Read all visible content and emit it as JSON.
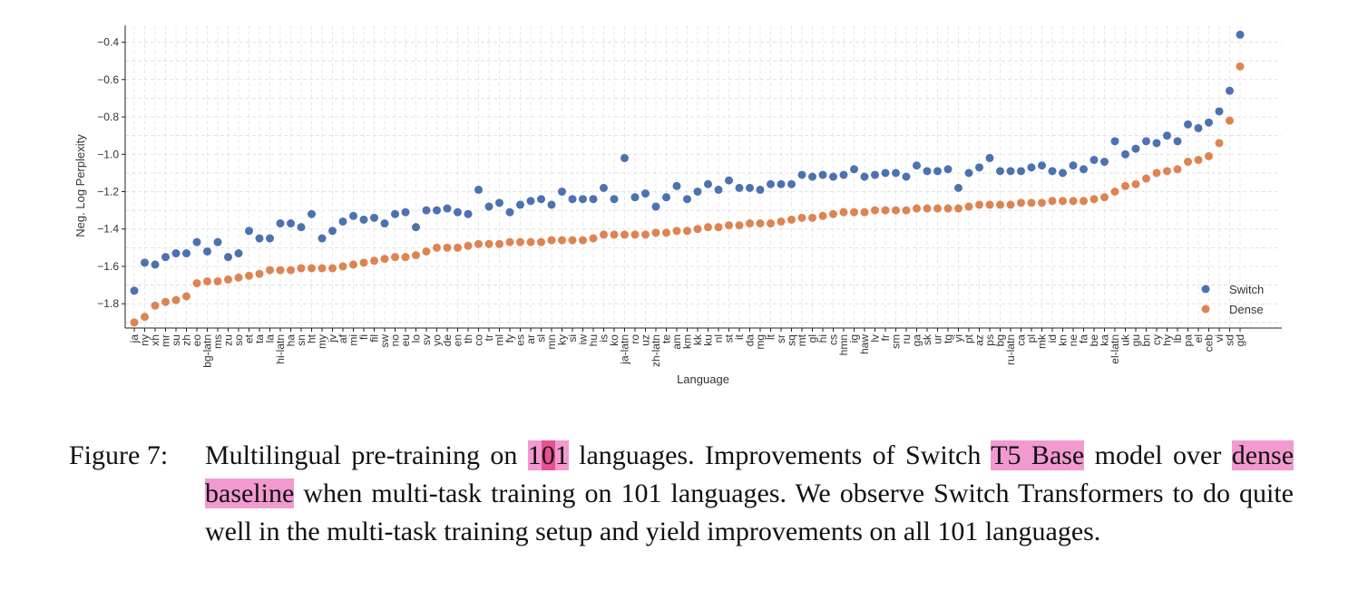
{
  "chart_data": {
    "type": "scatter",
    "xlabel": "Language",
    "ylabel": "Neg. Log Perplexity",
    "ylim": [
      -1.93,
      -0.31
    ],
    "yticks": [
      -1.8,
      -1.6,
      -1.4,
      -1.2,
      -1.0,
      -0.8,
      -0.6,
      -0.4
    ],
    "ytick_labels": [
      "−1.8",
      "−1.6",
      "−1.4",
      "−1.2",
      "−1.0",
      "−0.8",
      "−0.6",
      "−0.4"
    ],
    "grid": true,
    "legend_position": "bottom-right",
    "categories": [
      "ja",
      "ny",
      "xh",
      "mr",
      "su",
      "zh",
      "eo",
      "bg-latn",
      "ms",
      "zu",
      "so",
      "et",
      "ta",
      "la",
      "hi-latn",
      "ha",
      "sn",
      "ht",
      "my",
      "jv",
      "af",
      "mi",
      "fi",
      "fil",
      "sw",
      "no",
      "eu",
      "lo",
      "sv",
      "yo",
      "de",
      "en",
      "th",
      "co",
      "tr",
      "ml",
      "fy",
      "es",
      "ar",
      "sl",
      "mn",
      "ky",
      "si",
      "iw",
      "hu",
      "is",
      "ko",
      "ja-latn",
      "ro",
      "uz",
      "zh-latn",
      "te",
      "am",
      "km",
      "kk",
      "ku",
      "nl",
      "st",
      "it",
      "da",
      "mg",
      "lt",
      "sr",
      "sq",
      "mt",
      "gl",
      "hi",
      "cs",
      "hmn",
      "ig",
      "haw",
      "lv",
      "fr",
      "sm",
      "ru",
      "ga",
      "sk",
      "ur",
      "tg",
      "yi",
      "pt",
      "az",
      "ps",
      "bg",
      "ru-latn",
      "ca",
      "pl",
      "mk",
      "id",
      "kn",
      "ne",
      "fa",
      "be",
      "ka",
      "el-latn",
      "uk",
      "gu",
      "bn",
      "cy",
      "hy",
      "lb",
      "pa",
      "el",
      "ceb",
      "vi",
      "sd",
      "gd"
    ],
    "series": [
      {
        "name": "Switch",
        "color": "#4c72b0",
        "values": [
          -1.73,
          -1.58,
          -1.59,
          -1.55,
          -1.53,
          -1.53,
          -1.47,
          -1.52,
          -1.47,
          -1.55,
          -1.53,
          -1.41,
          -1.45,
          -1.45,
          -1.37,
          -1.37,
          -1.39,
          -1.32,
          -1.45,
          -1.41,
          -1.36,
          -1.33,
          -1.35,
          -1.34,
          -1.37,
          -1.32,
          -1.31,
          -1.39,
          -1.3,
          -1.3,
          -1.29,
          -1.31,
          -1.32,
          -1.19,
          -1.28,
          -1.26,
          -1.31,
          -1.27,
          -1.25,
          -1.24,
          -1.27,
          -1.2,
          -1.24,
          -1.24,
          -1.24,
          -1.18,
          -1.24,
          -1.02,
          -1.23,
          -1.21,
          -1.28,
          -1.23,
          -1.17,
          -1.24,
          -1.2,
          -1.16,
          -1.19,
          -1.14,
          -1.18,
          -1.18,
          -1.19,
          -1.16,
          -1.16,
          -1.16,
          -1.11,
          -1.12,
          -1.11,
          -1.12,
          -1.11,
          -1.08,
          -1.12,
          -1.11,
          -1.1,
          -1.1,
          -1.12,
          -1.06,
          -1.09,
          -1.09,
          -1.08,
          -1.18,
          -1.1,
          -1.07,
          -1.02,
          -1.09,
          -1.09,
          -1.09,
          -1.07,
          -1.06,
          -1.09,
          -1.1,
          -1.06,
          -1.08,
          -1.03,
          -1.04,
          -0.93,
          -1.0,
          -0.97,
          -0.93,
          -0.94,
          -0.9,
          -0.93,
          -0.84,
          -0.86,
          -0.83,
          -0.77,
          -0.66,
          -0.36
        ]
      },
      {
        "name": "Dense",
        "color": "#dd8452",
        "values": [
          -1.9,
          -1.87,
          -1.81,
          -1.79,
          -1.78,
          -1.76,
          -1.69,
          -1.68,
          -1.68,
          -1.67,
          -1.66,
          -1.65,
          -1.64,
          -1.62,
          -1.62,
          -1.62,
          -1.61,
          -1.61,
          -1.61,
          -1.61,
          -1.6,
          -1.59,
          -1.58,
          -1.57,
          -1.56,
          -1.55,
          -1.55,
          -1.54,
          -1.52,
          -1.5,
          -1.5,
          -1.5,
          -1.49,
          -1.48,
          -1.48,
          -1.48,
          -1.47,
          -1.47,
          -1.47,
          -1.47,
          -1.46,
          -1.46,
          -1.46,
          -1.46,
          -1.45,
          -1.43,
          -1.43,
          -1.43,
          -1.43,
          -1.43,
          -1.42,
          -1.42,
          -1.41,
          -1.41,
          -1.4,
          -1.39,
          -1.39,
          -1.38,
          -1.38,
          -1.37,
          -1.37,
          -1.37,
          -1.36,
          -1.35,
          -1.34,
          -1.34,
          -1.33,
          -1.32,
          -1.31,
          -1.31,
          -1.31,
          -1.3,
          -1.3,
          -1.3,
          -1.3,
          -1.29,
          -1.29,
          -1.29,
          -1.29,
          -1.29,
          -1.28,
          -1.27,
          -1.27,
          -1.27,
          -1.27,
          -1.26,
          -1.26,
          -1.26,
          -1.25,
          -1.25,
          -1.25,
          -1.25,
          -1.24,
          -1.23,
          -1.2,
          -1.17,
          -1.16,
          -1.13,
          -1.1,
          -1.09,
          -1.08,
          -1.04,
          -1.03,
          -1.01,
          -0.94,
          -0.82,
          -0.53
        ]
      }
    ]
  },
  "caption": {
    "label": "Figure 7:",
    "t1": "Multilingual pre-training on ",
    "hl_a": "1",
    "hl_b": "0",
    "hl_c": "1",
    "t2": " languages.  Improvements of Switch ",
    "hl_t5": "T5 Base",
    "t3": " model over ",
    "hl_dense": "dense baseline",
    "t4": " when multi-task training on 101 languages. We observe Switch Transformers to do quite well in the multi-task training setup and yield improvements on all 101 languages."
  }
}
